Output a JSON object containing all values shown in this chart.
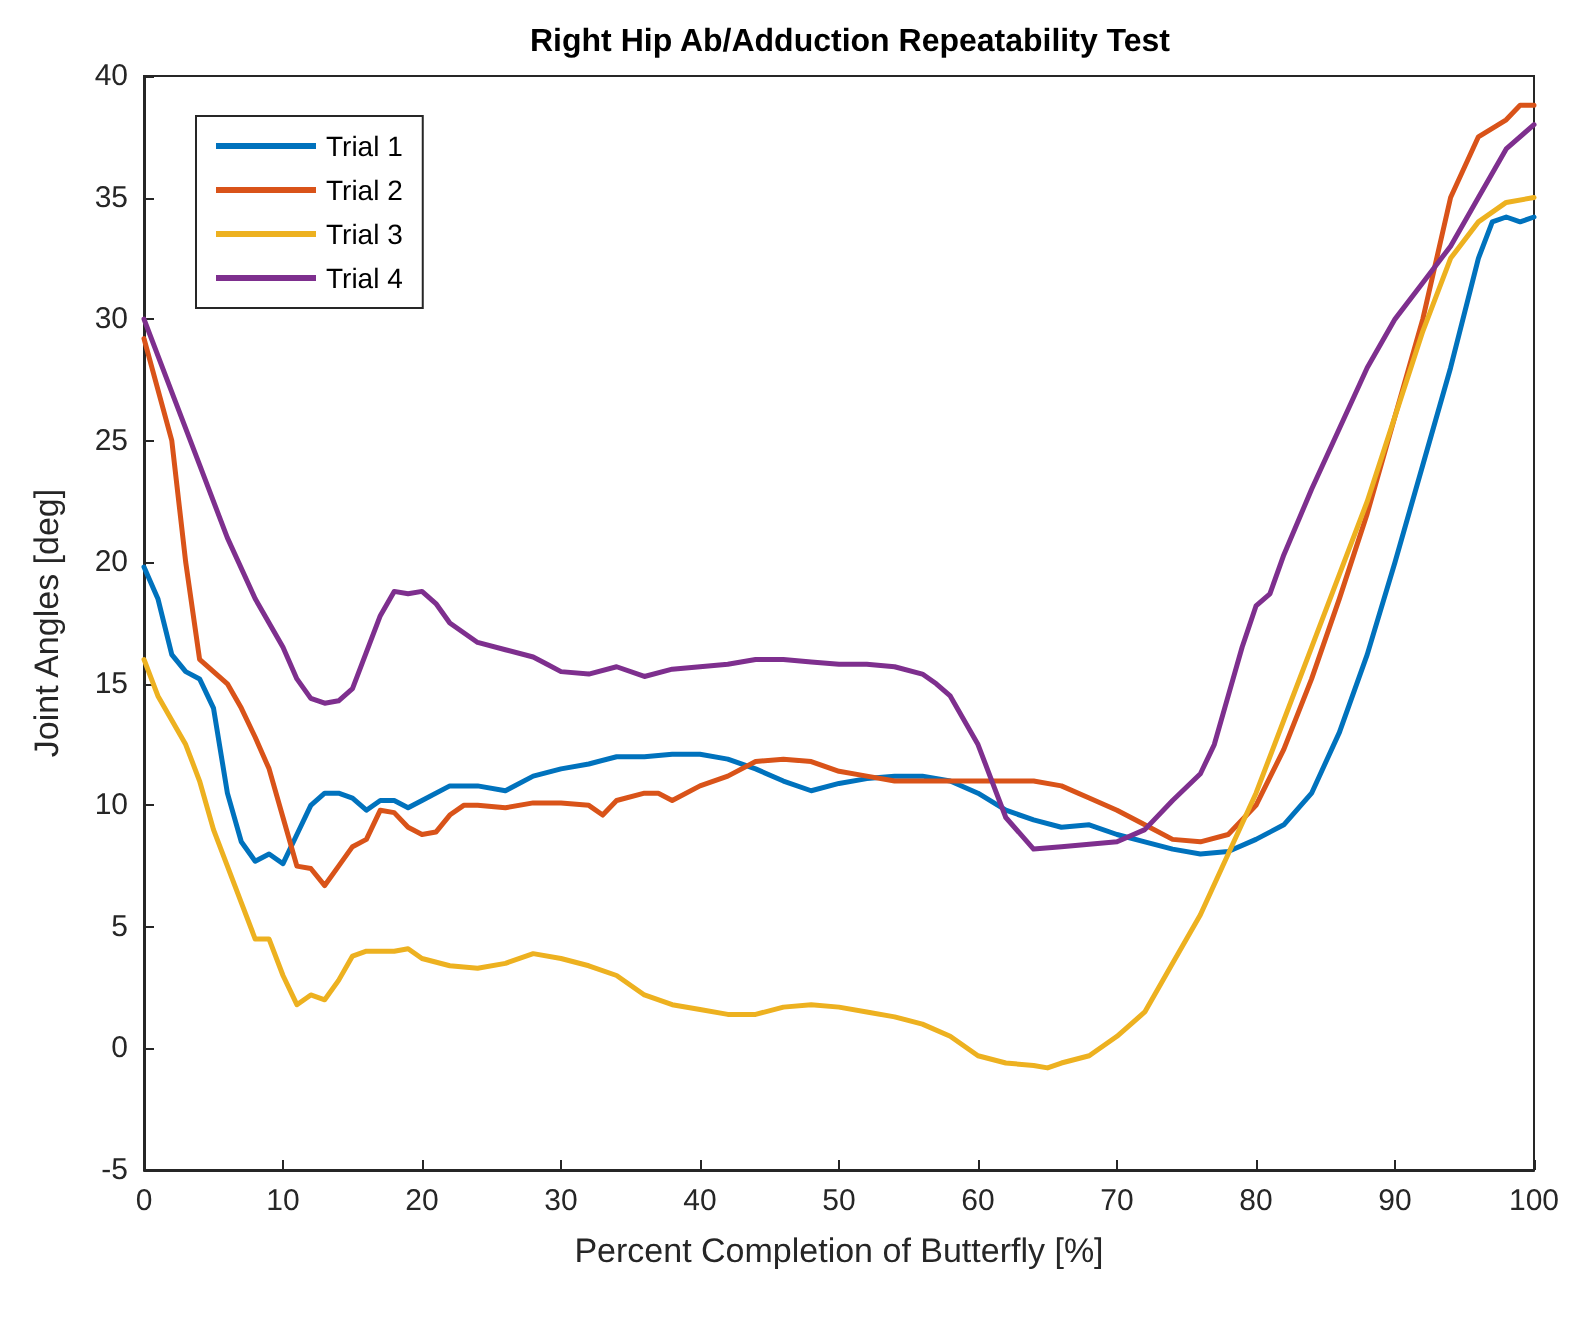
{
  "chart_data": {
    "type": "line",
    "title": "Right Hip Ab/Adduction Repeatability Test",
    "xlabel": "Percent Completion of Butterfly [%]",
    "ylabel": "Joint Angles [deg]",
    "xlim": [
      0,
      100
    ],
    "xticks": [
      0,
      10,
      20,
      30,
      40,
      50,
      60,
      70,
      80,
      90,
      100
    ],
    "ylim": [
      -5,
      40
    ],
    "yticks": [
      -5,
      0,
      5,
      10,
      15,
      20,
      25,
      30,
      35,
      40
    ],
    "grid": false,
    "legend": "top left",
    "marker": "none",
    "line_style": "solid",
    "series": [
      {
        "name": "Trial 1",
        "color": "#0072bd",
        "x": [
          0,
          1,
          2,
          3,
          4,
          5,
          6,
          7,
          8,
          9,
          10,
          11,
          12,
          13,
          14,
          15,
          16,
          17,
          18,
          19,
          20,
          22,
          24,
          26,
          28,
          30,
          32,
          34,
          36,
          38,
          40,
          42,
          44,
          46,
          48,
          50,
          52,
          54,
          56,
          58,
          60,
          62,
          64,
          66,
          68,
          70,
          72,
          74,
          76,
          78,
          80,
          82,
          84,
          86,
          88,
          90,
          92,
          94,
          96,
          97,
          98,
          99,
          100
        ],
        "values": [
          19.8,
          18.5,
          16.2,
          15.5,
          15.2,
          14,
          10.5,
          8.5,
          7.7,
          8,
          7.6,
          8.8,
          10,
          10.5,
          10.5,
          10.3,
          9.8,
          10.2,
          10.2,
          9.9,
          10.2,
          10.8,
          10.8,
          10.6,
          11.2,
          11.5,
          11.7,
          12,
          12,
          12.1,
          12.1,
          11.9,
          11.5,
          11,
          10.6,
          10.9,
          11.1,
          11.2,
          11.2,
          11,
          10.5,
          9.8,
          9.4,
          9.1,
          9.2,
          8.8,
          8.5,
          8.2,
          8,
          8.1,
          8.6,
          9.2,
          10.5,
          13,
          16.2,
          20,
          24,
          28,
          32.5,
          34,
          34.2,
          34,
          34.2
        ]
      },
      {
        "name": "Trial 2",
        "color": "#d95319",
        "x": [
          0,
          2,
          3,
          4,
          5,
          6,
          7,
          8,
          9,
          10,
          11,
          12,
          13,
          14,
          15,
          16,
          17,
          18,
          19,
          20,
          21,
          22,
          23,
          24,
          26,
          28,
          30,
          32,
          33,
          34,
          36,
          37,
          38,
          40,
          42,
          44,
          46,
          48,
          50,
          52,
          54,
          56,
          58,
          60,
          62,
          64,
          66,
          68,
          70,
          72,
          74,
          76,
          78,
          80,
          82,
          84,
          86,
          88,
          90,
          92,
          94,
          96,
          98,
          99,
          100
        ],
        "values": [
          29.2,
          25,
          20,
          16,
          15.5,
          15,
          14,
          12.8,
          11.5,
          9.5,
          7.5,
          7.4,
          6.7,
          7.5,
          8.3,
          8.6,
          9.8,
          9.7,
          9.1,
          8.8,
          8.9,
          9.6,
          10,
          10,
          9.9,
          10.1,
          10.1,
          10,
          9.6,
          10.2,
          10.5,
          10.5,
          10.2,
          10.8,
          11.2,
          11.8,
          11.9,
          11.8,
          11.4,
          11.2,
          11,
          11,
          11,
          11,
          11,
          11,
          10.8,
          10.3,
          9.8,
          9.2,
          8.6,
          8.5,
          8.8,
          10,
          12.3,
          15.2,
          18.5,
          22,
          26,
          30,
          35,
          37.5,
          38.2,
          38.8,
          38.8
        ]
      },
      {
        "name": "Trial 3",
        "color": "#edb120",
        "x": [
          0,
          1,
          2,
          3,
          4,
          5,
          6,
          7,
          8,
          9,
          10,
          11,
          12,
          13,
          14,
          15,
          16,
          18,
          19,
          20,
          22,
          24,
          26,
          28,
          30,
          32,
          34,
          36,
          38,
          40,
          42,
          44,
          46,
          48,
          50,
          52,
          54,
          56,
          58,
          60,
          62,
          64,
          65,
          66,
          68,
          70,
          72,
          74,
          76,
          78,
          80,
          82,
          84,
          86,
          88,
          90,
          92,
          94,
          96,
          98,
          100
        ],
        "values": [
          16,
          14.5,
          13.5,
          12.5,
          11,
          9,
          7.5,
          6,
          4.5,
          4.5,
          3,
          1.8,
          2.2,
          2,
          2.8,
          3.8,
          4,
          4,
          4.1,
          3.7,
          3.4,
          3.3,
          3.5,
          3.9,
          3.7,
          3.4,
          3,
          2.2,
          1.8,
          1.6,
          1.4,
          1.4,
          1.7,
          1.8,
          1.7,
          1.5,
          1.3,
          1,
          0.5,
          -0.3,
          -0.6,
          -0.7,
          -0.8,
          -0.6,
          -0.3,
          0.5,
          1.5,
          3.5,
          5.5,
          8,
          10.5,
          13.5,
          16.5,
          19.5,
          22.5,
          26,
          29.5,
          32.5,
          34,
          34.8,
          35
        ]
      },
      {
        "name": "Trial 4",
        "color": "#7e2f8e",
        "x": [
          0,
          2,
          4,
          6,
          8,
          10,
          11,
          12,
          13,
          14,
          15,
          16,
          17,
          18,
          19,
          20,
          21,
          22,
          24,
          26,
          28,
          29,
          30,
          32,
          34,
          36,
          38,
          40,
          42,
          44,
          46,
          48,
          50,
          52,
          54,
          56,
          57,
          58,
          60,
          61,
          62,
          64,
          66,
          68,
          70,
          72,
          74,
          76,
          77,
          78,
          79,
          80,
          81,
          82,
          84,
          86,
          88,
          90,
          92,
          94,
          96,
          98,
          100
        ],
        "values": [
          30,
          27,
          24,
          21,
          18.5,
          16.5,
          15.2,
          14.4,
          14.2,
          14.3,
          14.8,
          16.3,
          17.8,
          18.8,
          18.7,
          18.8,
          18.3,
          17.5,
          16.7,
          16.4,
          16.1,
          15.8,
          15.5,
          15.4,
          15.7,
          15.3,
          15.6,
          15.7,
          15.8,
          16,
          16,
          15.9,
          15.8,
          15.8,
          15.7,
          15.4,
          15,
          14.5,
          12.5,
          11,
          9.5,
          8.2,
          8.3,
          8.4,
          8.5,
          9,
          10.2,
          11.3,
          12.5,
          14.5,
          16.5,
          18.2,
          18.7,
          20.3,
          23,
          25.5,
          28,
          30,
          31.5,
          33,
          35,
          37,
          38
        ]
      }
    ]
  }
}
